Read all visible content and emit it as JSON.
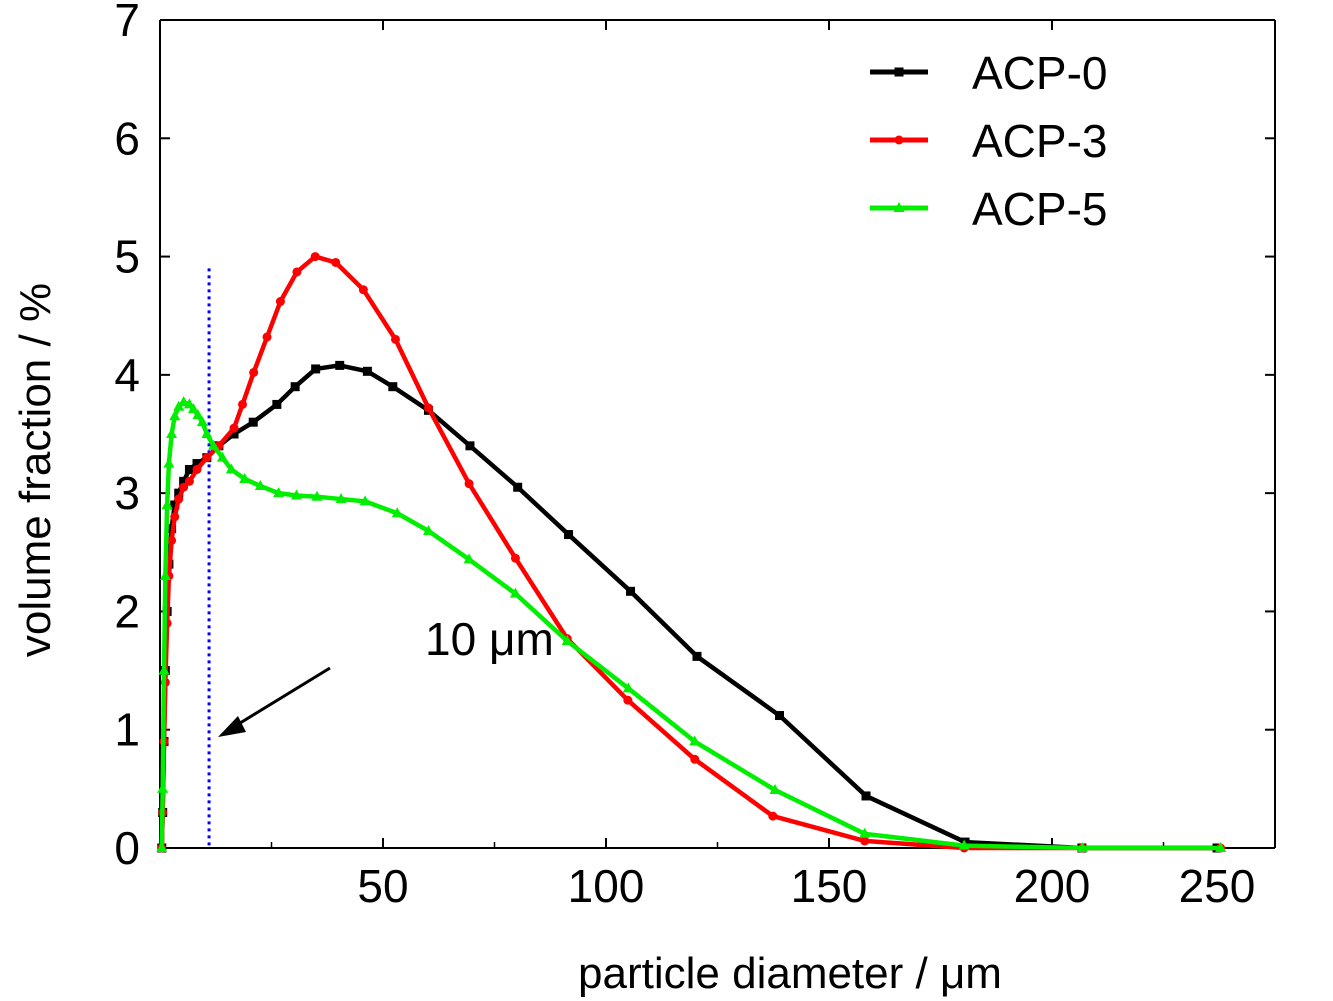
{
  "chart_data": {
    "type": "line",
    "title": "",
    "xlabel": "particle diameter / μm",
    "ylabel": "volume fraction / %",
    "xlim": [
      0,
      250
    ],
    "ylim": [
      0,
      7
    ],
    "x_ticks": [
      50,
      100,
      150,
      200,
      250
    ],
    "y_ticks": [
      0,
      1,
      2,
      3,
      4,
      5,
      6,
      7
    ],
    "grid": false,
    "legend_position": "top-right",
    "annotation": {
      "text": "10 μm",
      "marker_x": 11,
      "marker_top_y": 4.9,
      "marker_color": "#0000ff",
      "marker_style": "dotted vertical line"
    },
    "series": [
      {
        "name": "ACP-0",
        "color": "#000000",
        "marker": "square",
        "x": [
          0.4,
          0.6,
          0.9,
          1.2,
          1.6,
          2.0,
          2.6,
          3.3,
          4.2,
          5.3,
          6.6,
          8.3,
          10.5,
          13.2,
          16.6,
          20.9,
          26.2,
          30.3,
          34.9,
          40.3,
          46.5,
          52.2,
          60.2,
          69.5,
          80.2,
          91.6,
          105.5,
          120.4,
          138.9,
          158.3,
          180.5,
          206.7,
          237.0
        ],
        "values": [
          0.0,
          0.3,
          0.9,
          1.5,
          2.0,
          2.4,
          2.7,
          2.9,
          3.0,
          3.1,
          3.2,
          3.25,
          3.3,
          3.4,
          3.5,
          3.6,
          3.75,
          3.9,
          4.05,
          4.08,
          4.03,
          3.9,
          3.7,
          3.4,
          3.05,
          2.65,
          2.17,
          1.62,
          1.12,
          0.44,
          0.05,
          0.0,
          0.0
        ]
      },
      {
        "name": "ACP-3",
        "color": "#ff0000",
        "marker": "circle",
        "x": [
          0.4,
          0.6,
          0.9,
          1.2,
          1.6,
          2.0,
          2.6,
          3.3,
          4.2,
          5.3,
          6.6,
          8.3,
          10.5,
          13.2,
          16.6,
          18.5,
          21.0,
          24.0,
          27.0,
          30.7,
          34.8,
          39.4,
          45.6,
          52.8,
          60.2,
          69.3,
          79.7,
          91.3,
          104.9,
          119.9,
          137.4,
          158.0,
          180.3,
          206.8,
          237.8
        ],
        "values": [
          0.0,
          0.3,
          0.9,
          1.4,
          1.9,
          2.3,
          2.6,
          2.8,
          2.95,
          3.05,
          3.1,
          3.2,
          3.3,
          3.4,
          3.55,
          3.75,
          4.02,
          4.32,
          4.62,
          4.87,
          5.0,
          4.95,
          4.72,
          4.3,
          3.72,
          3.08,
          2.45,
          1.77,
          1.25,
          0.75,
          0.27,
          0.06,
          0.0,
          0.0,
          0.0
        ]
      },
      {
        "name": "ACP-5",
        "color": "#00ee00",
        "marker": "triangle",
        "x": [
          0.4,
          0.6,
          0.9,
          1.2,
          1.6,
          2.0,
          2.6,
          3.3,
          4.2,
          5.3,
          6.6,
          7.5,
          8.5,
          9.5,
          10.5,
          12.0,
          14.0,
          16.0,
          19.0,
          22.5,
          26.6,
          30.6,
          35.2,
          40.6,
          46.0,
          53.2,
          60.2,
          69.3,
          79.7,
          91.3,
          105.0,
          119.9,
          137.9,
          158.0,
          180.3,
          206.8,
          237.8
        ],
        "values": [
          0.0,
          0.5,
          1.5,
          2.3,
          2.9,
          3.25,
          3.5,
          3.65,
          3.73,
          3.77,
          3.75,
          3.71,
          3.66,
          3.6,
          3.5,
          3.4,
          3.3,
          3.2,
          3.12,
          3.06,
          3.0,
          2.98,
          2.97,
          2.95,
          2.93,
          2.83,
          2.68,
          2.44,
          2.15,
          1.75,
          1.35,
          0.9,
          0.49,
          0.12,
          0.02,
          0.0,
          0.0
        ]
      }
    ]
  }
}
